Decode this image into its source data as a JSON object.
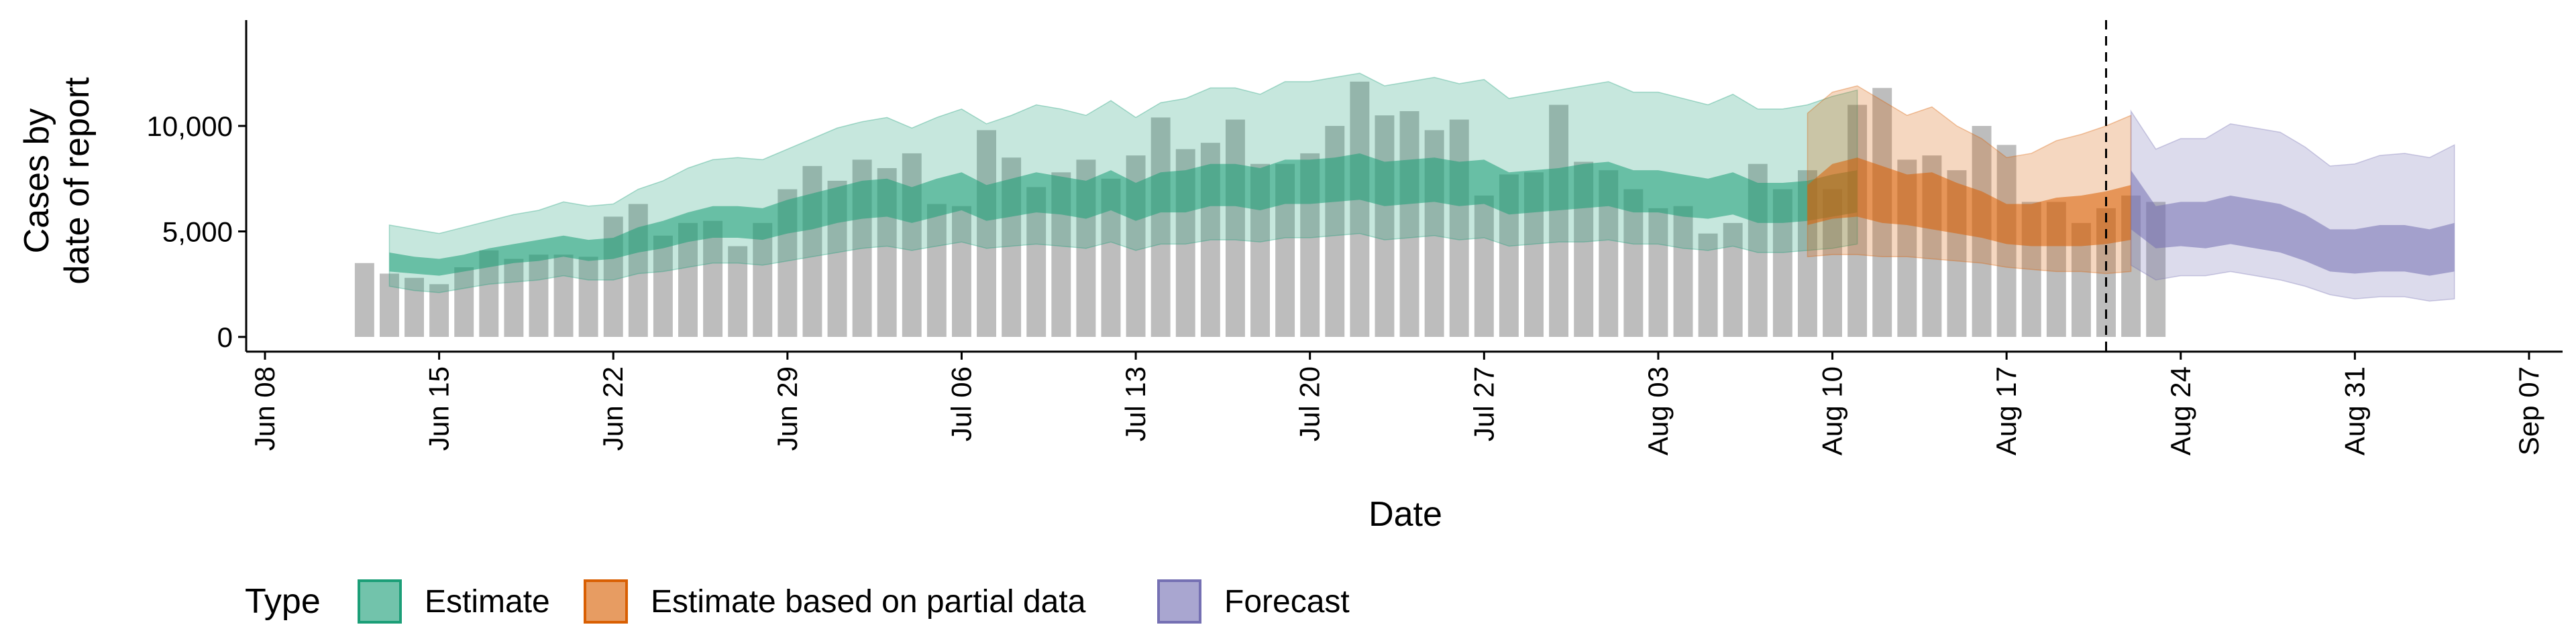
{
  "chart_data": {
    "type": "bar",
    "xlabel": "Date",
    "ylabel_line1": "Cases by",
    "ylabel_line2": "date of report",
    "x_range": [
      "2020-06-08",
      "2020-09-07"
    ],
    "ylim": [
      0,
      15000
    ],
    "y_ticks": [
      {
        "value": 0,
        "label": "0"
      },
      {
        "value": 5000,
        "label": "5,000"
      },
      {
        "value": 10000,
        "label": "10,000"
      }
    ],
    "x_ticks": [
      {
        "date": "2020-06-08",
        "label": "Jun 08"
      },
      {
        "date": "2020-06-15",
        "label": "Jun 15"
      },
      {
        "date": "2020-06-22",
        "label": "Jun 22"
      },
      {
        "date": "2020-06-29",
        "label": "Jun 29"
      },
      {
        "date": "2020-07-06",
        "label": "Jul 06"
      },
      {
        "date": "2020-07-13",
        "label": "Jul 13"
      },
      {
        "date": "2020-07-20",
        "label": "Jul 20"
      },
      {
        "date": "2020-07-27",
        "label": "Jul 27"
      },
      {
        "date": "2020-08-03",
        "label": "Aug 03"
      },
      {
        "date": "2020-08-10",
        "label": "Aug 10"
      },
      {
        "date": "2020-08-17",
        "label": "Aug 17"
      },
      {
        "date": "2020-08-24",
        "label": "Aug 24"
      },
      {
        "date": "2020-08-31",
        "label": "Aug 31"
      },
      {
        "date": "2020-09-07",
        "label": "Sep 07"
      }
    ],
    "reported_cases": {
      "start_date": "2020-06-12",
      "values": [
        3500,
        3000,
        2800,
        2500,
        3300,
        4100,
        3700,
        3900,
        3900,
        3800,
        5700,
        6300,
        4800,
        5400,
        5500,
        4300,
        5400,
        7000,
        8100,
        7400,
        8400,
        8000,
        8700,
        6300,
        6200,
        9800,
        8500,
        7100,
        7800,
        8400,
        7500,
        8600,
        10400,
        8900,
        9200,
        10300,
        8200,
        8200,
        8700,
        10000,
        12100,
        10500,
        10700,
        9800,
        10300,
        6700,
        7700,
        7800,
        11000,
        8300,
        7900,
        7000,
        6100,
        6200,
        4900,
        5400,
        8200,
        7000,
        7900,
        7000,
        11000,
        11800,
        8400,
        8600,
        7900,
        10000,
        9100,
        6400,
        6400,
        5400,
        6100,
        6700,
        6400
      ]
    },
    "vertical_line_date": "2020-08-21",
    "series": [
      {
        "name": "Estimate",
        "color": "#1b9e77",
        "start_date": "2020-06-13",
        "lower90": [
          2400,
          2200,
          2100,
          2300,
          2500,
          2600,
          2700,
          2900,
          2700,
          2700,
          3000,
          3100,
          3300,
          3500,
          3500,
          3400,
          3600,
          3800,
          4000,
          4200,
          4300,
          4100,
          4300,
          4500,
          4200,
          4300,
          4400,
          4300,
          4200,
          4500,
          4100,
          4400,
          4400,
          4600,
          4600,
          4500,
          4700,
          4700,
          4800,
          4900,
          4600,
          4700,
          4800,
          4600,
          4700,
          4300,
          4400,
          4500,
          4500,
          4600,
          4400,
          4400,
          4200,
          4100,
          4300,
          4000,
          4000,
          4100,
          4200,
          4400
        ],
        "lower50": [
          3100,
          3000,
          2900,
          3100,
          3300,
          3500,
          3600,
          3800,
          3600,
          3700,
          4000,
          4200,
          4500,
          4700,
          4700,
          4600,
          4900,
          5100,
          5400,
          5600,
          5700,
          5400,
          5700,
          6000,
          5500,
          5700,
          5900,
          5800,
          5600,
          6000,
          5500,
          5900,
          5900,
          6200,
          6200,
          6000,
          6300,
          6300,
          6400,
          6500,
          6200,
          6300,
          6400,
          6200,
          6300,
          5800,
          5900,
          6000,
          6100,
          6200,
          5900,
          5900,
          5700,
          5600,
          5800,
          5400,
          5400,
          5500,
          5700,
          5900
        ],
        "upper50": [
          4000,
          3800,
          3700,
          3900,
          4200,
          4400,
          4600,
          4800,
          4600,
          4700,
          5200,
          5500,
          5900,
          6200,
          6200,
          6100,
          6500,
          6800,
          7100,
          7400,
          7500,
          7100,
          7500,
          7800,
          7200,
          7500,
          7800,
          7600,
          7400,
          7900,
          7300,
          7800,
          7900,
          8200,
          8200,
          8000,
          8400,
          8400,
          8500,
          8700,
          8300,
          8400,
          8500,
          8300,
          8400,
          7800,
          7900,
          8000,
          8200,
          8300,
          7900,
          7900,
          7700,
          7500,
          7800,
          7300,
          7300,
          7400,
          7700,
          7900
        ],
        "upper90": [
          5300,
          5100,
          4900,
          5200,
          5500,
          5800,
          6000,
          6400,
          6200,
          6300,
          7000,
          7400,
          8000,
          8400,
          8500,
          8400,
          8900,
          9400,
          9900,
          10200,
          10400,
          9900,
          10400,
          10800,
          10100,
          10500,
          11000,
          10800,
          10500,
          11200,
          10400,
          11100,
          11300,
          11800,
          11800,
          11500,
          12100,
          12100,
          12300,
          12500,
          11900,
          12100,
          12300,
          12000,
          12200,
          11300,
          11500,
          11700,
          11900,
          12100,
          11600,
          11600,
          11300,
          11000,
          11500,
          10800,
          10800,
          11000,
          11400,
          11700
        ]
      },
      {
        "name": "Estimate based on partial data",
        "color": "#d95f02",
        "start_date": "2020-08-09",
        "lower90": [
          3800,
          3900,
          3900,
          3800,
          3800,
          3700,
          3600,
          3500,
          3300,
          3200,
          3100,
          3100,
          3000,
          3100
        ],
        "lower50": [
          5300,
          5600,
          5700,
          5400,
          5300,
          5100,
          4900,
          4700,
          4400,
          4300,
          4300,
          4300,
          4400,
          4600
        ],
        "upper50": [
          7200,
          8200,
          8500,
          8100,
          7700,
          7800,
          7300,
          6900,
          6300,
          6300,
          6600,
          6700,
          6900,
          7200
        ],
        "upper90": [
          10600,
          11600,
          11900,
          11200,
          10500,
          10900,
          10000,
          9400,
          8500,
          8700,
          9300,
          9600,
          10000,
          10500
        ]
      },
      {
        "name": "Forecast",
        "color": "#7570b3",
        "start_date": "2020-08-22",
        "lower90": [
          3400,
          2700,
          2900,
          2900,
          3100,
          2900,
          2700,
          2400,
          2000,
          1800,
          1900,
          1900,
          1700,
          1800
        ],
        "lower50": [
          5100,
          4200,
          4300,
          4200,
          4400,
          4200,
          4000,
          3600,
          3100,
          3000,
          3100,
          3100,
          2900,
          3100
        ],
        "upper50": [
          7900,
          6200,
          6400,
          6400,
          6700,
          6500,
          6300,
          5800,
          5100,
          5100,
          5300,
          5300,
          5100,
          5400
        ],
        "upper90": [
          10700,
          8900,
          9400,
          9400,
          10100,
          9900,
          9700,
          9000,
          8100,
          8200,
          8600,
          8700,
          8500,
          9100
        ]
      }
    ],
    "legend": {
      "title": "Type",
      "position": "bottom-left"
    }
  }
}
